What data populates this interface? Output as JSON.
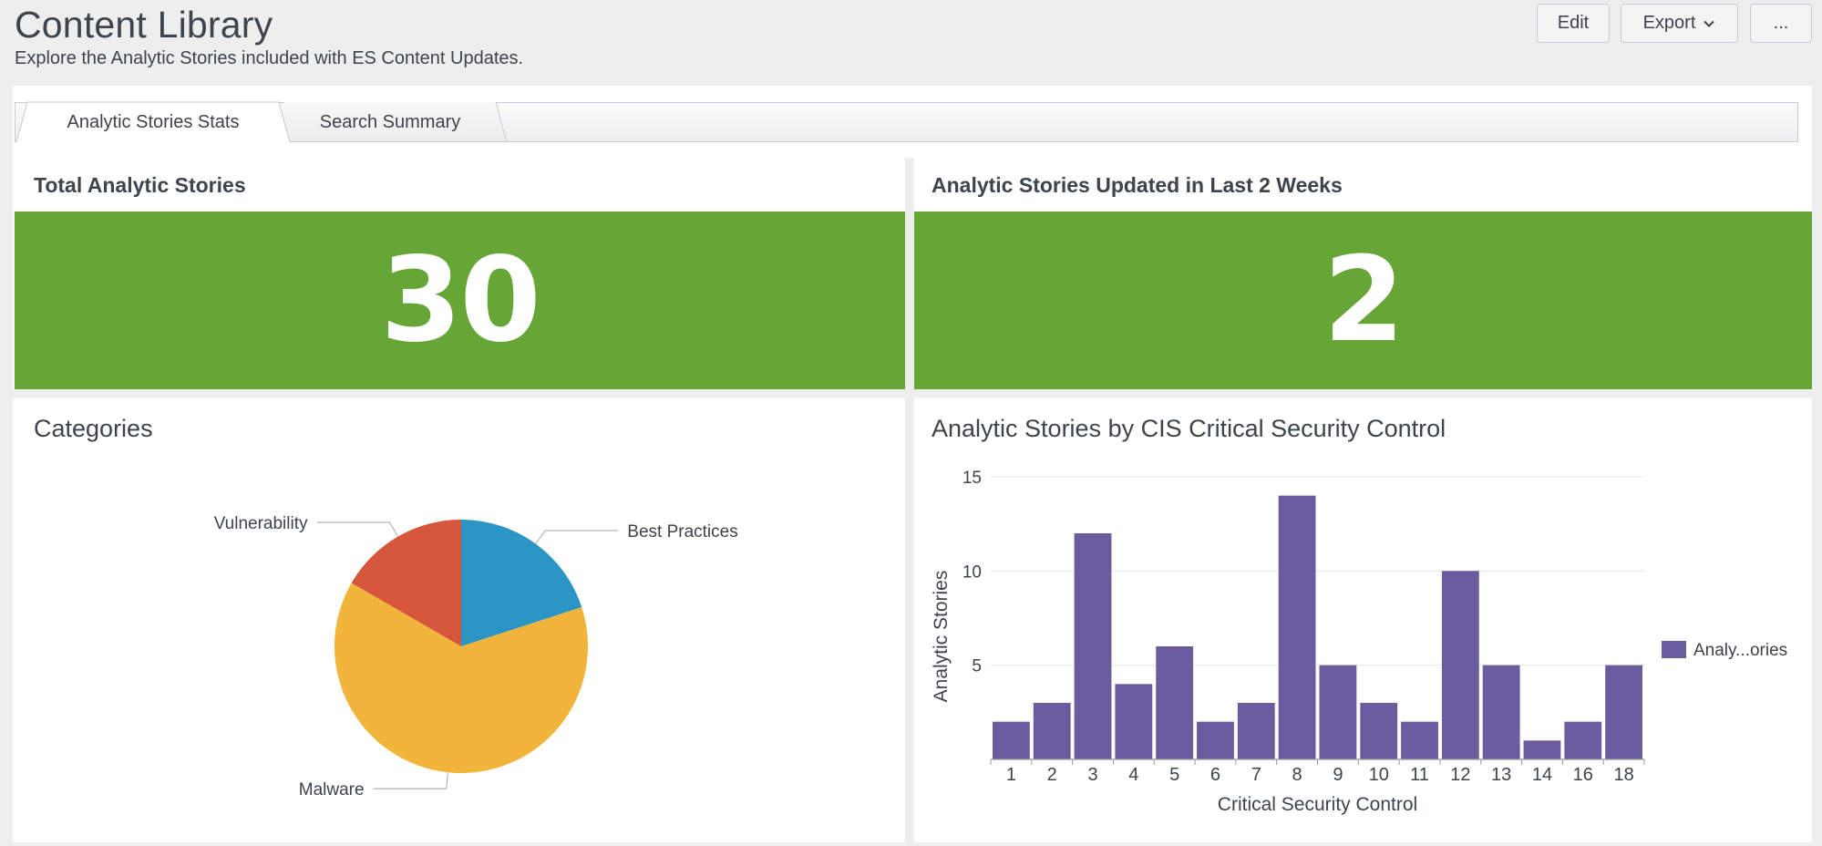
{
  "header": {
    "title": "Content Library",
    "description": "Explore the Analytic Stories included with ES Content Updates.",
    "edit_label": "Edit",
    "export_label": "Export",
    "more_label": "..."
  },
  "tabs": [
    {
      "label": "Analytic Stories Stats",
      "active": true
    },
    {
      "label": "Search Summary",
      "active": false
    }
  ],
  "panels": {
    "total": {
      "title": "Total Analytic Stories",
      "value": "30",
      "color": "#65a637"
    },
    "updated": {
      "title": "Analytic Stories Updated in Last 2 Weeks",
      "value": "2",
      "color": "#65a637"
    },
    "categories": {
      "title": "Categories"
    },
    "cis": {
      "title": "Analytic Stories by CIS Critical Security Control"
    }
  },
  "chart_data": [
    {
      "type": "pie",
      "categories": [
        "Best Practices",
        "Malware",
        "Vulnerability"
      ],
      "values": [
        6,
        19,
        5
      ],
      "colors": [
        "#2b95c5",
        "#f1b53b",
        "#d6563c"
      ]
    },
    {
      "type": "bar",
      "categories": [
        "1",
        "2",
        "3",
        "4",
        "5",
        "6",
        "7",
        "8",
        "9",
        "10",
        "11",
        "12",
        "13",
        "14",
        "16",
        "18"
      ],
      "series": [
        {
          "name": "Analy...ories",
          "values": [
            2,
            3,
            12,
            4,
            6,
            2,
            3,
            14,
            5,
            3,
            2,
            10,
            5,
            1,
            2,
            5
          ],
          "color": "#6a5c9e"
        }
      ],
      "xlabel": "Critical Security Control",
      "ylabel": "Analytic Stories",
      "ylim": [
        0,
        15
      ],
      "yticks": [
        5,
        10,
        15
      ],
      "grid": true,
      "legend": "right"
    }
  ]
}
